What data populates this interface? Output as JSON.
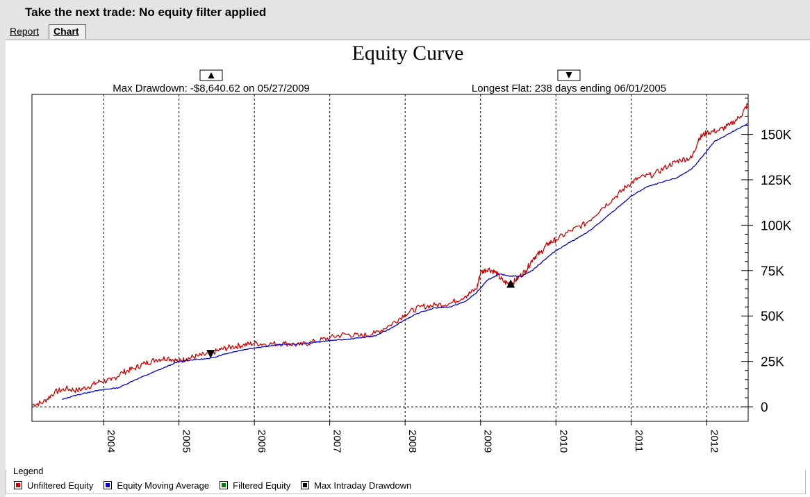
{
  "window": {
    "title": "Take the next trade: No equity filter applied"
  },
  "tabs": {
    "report": "Report",
    "chart": "Chart"
  },
  "legend": {
    "title": "Legend",
    "items": [
      {
        "label": "Unfiltered Equity",
        "color": "#cc0000"
      },
      {
        "label": "Equity Moving Average",
        "color": "#0000cc"
      },
      {
        "label": "Filtered Equity",
        "color": "#008000"
      },
      {
        "label": "Max Intraday Drawdown",
        "color": "#000000"
      }
    ]
  },
  "chart_data": {
    "type": "line",
    "title": "Equity Curve",
    "annotations": {
      "max_drawdown": "Max Drawdown: -$8,640.62 on 05/27/2009",
      "longest_flat": "Longest Flat: 238 days ending 06/01/2005",
      "max_drawdown_icon": "triangle-up-icon",
      "longest_flat_icon": "triangle-down-icon"
    },
    "x_ticks": [
      "2004",
      "2005",
      "2006",
      "2007",
      "2008",
      "2009",
      "2010",
      "2011",
      "2012"
    ],
    "y_ticks": [
      "0",
      "25K",
      "50K",
      "75K",
      "100K",
      "125K",
      "150K"
    ],
    "xlim": [
      2003.05,
      2012.55
    ],
    "ylim": [
      -8000,
      172000
    ],
    "grid": "vertical dashed at years; dashed zero line",
    "markers": [
      {
        "type": "max_drawdown",
        "x": 2009.4,
        "y": 67500,
        "shape": "triangle-up"
      },
      {
        "type": "longest_flat",
        "x": 2005.42,
        "y": 29000,
        "shape": "triangle-down"
      }
    ],
    "series": [
      {
        "name": "Unfiltered Equity",
        "color": "#cc0000",
        "x": [
          2003.05,
          2003.2,
          2003.35,
          2003.5,
          2003.65,
          2003.8,
          2003.95,
          2004.1,
          2004.25,
          2004.4,
          2004.55,
          2004.7,
          2004.85,
          2005.0,
          2005.1,
          2005.25,
          2005.4,
          2005.55,
          2005.7,
          2005.85,
          2006.0,
          2006.2,
          2006.4,
          2006.6,
          2006.8,
          2007.0,
          2007.2,
          2007.4,
          2007.6,
          2007.8,
          2008.0,
          2008.2,
          2008.4,
          2008.6,
          2008.8,
          2008.95,
          2009.0,
          2009.1,
          2009.2,
          2009.3,
          2009.4,
          2009.5,
          2009.6,
          2009.7,
          2009.8,
          2009.9,
          2010.0,
          2010.2,
          2010.4,
          2010.6,
          2010.8,
          2010.95,
          2011.1,
          2011.3,
          2011.5,
          2011.65,
          2011.8,
          2011.9,
          2012.0,
          2012.15,
          2012.3,
          2012.45,
          2012.55
        ],
        "y": [
          1000,
          2500,
          8000,
          10000,
          9000,
          11000,
          14000,
          14500,
          19000,
          21000,
          24000,
          26000,
          27000,
          25000,
          26500,
          28000,
          29000,
          31500,
          33000,
          34000,
          35000,
          34500,
          35000,
          34000,
          36000,
          38000,
          40000,
          39000,
          40500,
          45000,
          51000,
          55000,
          56000,
          57000,
          61000,
          65000,
          74000,
          76000,
          74000,
          69000,
          67500,
          71000,
          75000,
          82000,
          85000,
          90000,
          92000,
          97000,
          101000,
          109000,
          116000,
          122000,
          126000,
          128000,
          133000,
          136000,
          137000,
          148000,
          151000,
          152000,
          155000,
          160000,
          167000
        ]
      },
      {
        "name": "Equity Moving Average",
        "color": "#0000cc",
        "x": [
          2003.45,
          2003.6,
          2003.8,
          2004.0,
          2004.2,
          2004.4,
          2004.6,
          2004.8,
          2005.0,
          2005.2,
          2005.4,
          2005.6,
          2005.8,
          2006.0,
          2006.2,
          2006.4,
          2006.6,
          2006.8,
          2007.0,
          2007.2,
          2007.4,
          2007.6,
          2007.8,
          2008.0,
          2008.2,
          2008.4,
          2008.6,
          2008.8,
          2008.95,
          2009.1,
          2009.25,
          2009.4,
          2009.55,
          2009.7,
          2009.85,
          2010.0,
          2010.2,
          2010.4,
          2010.6,
          2010.8,
          2011.0,
          2011.2,
          2011.4,
          2011.6,
          2011.8,
          2011.95,
          2012.1,
          2012.3,
          2012.55
        ],
        "y": [
          4000,
          6000,
          8000,
          9500,
          10500,
          14500,
          18000,
          21500,
          25000,
          26000,
          26500,
          29000,
          31000,
          32500,
          33500,
          34500,
          34500,
          35500,
          36500,
          37000,
          38000,
          39000,
          43000,
          48000,
          52000,
          54500,
          55000,
          58000,
          63000,
          70000,
          73000,
          72000,
          72000,
          75500,
          81000,
          86000,
          91000,
          95500,
          102000,
          109000,
          116000,
          121000,
          123500,
          126000,
          131000,
          138000,
          146000,
          150500,
          156000
        ]
      }
    ]
  }
}
